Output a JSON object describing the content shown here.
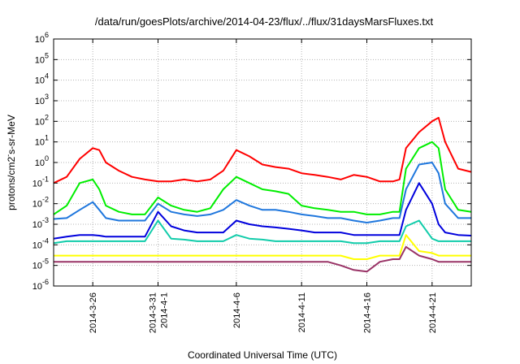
{
  "chart_data": {
    "type": "line",
    "title": "/data/run/goesPlots/archive/2014-04-23/flux/../flux/31daysMarsFluxes.txt",
    "xlabel": "Coordinated Universal Time (UTC)",
    "ylabel": "protons/cm2-s-sr-MeV",
    "y_scale": "log",
    "ylim": [
      1e-06,
      1000000.0
    ],
    "xlim": [
      "2014-03-23",
      "2014-04-24"
    ],
    "grid": true,
    "y_ticks": [
      {
        "value": 1e-06,
        "mantissa": "10",
        "exponent": "-6"
      },
      {
        "value": 1e-05,
        "mantissa": "10",
        "exponent": "-5"
      },
      {
        "value": 0.0001,
        "mantissa": "10",
        "exponent": "-4"
      },
      {
        "value": 0.001,
        "mantissa": "10",
        "exponent": "-3"
      },
      {
        "value": 0.01,
        "mantissa": "10",
        "exponent": "-2"
      },
      {
        "value": 0.1,
        "mantissa": "10",
        "exponent": "-1"
      },
      {
        "value": 1,
        "mantissa": "10",
        "exponent": "0"
      },
      {
        "value": 10,
        "mantissa": "10",
        "exponent": "1"
      },
      {
        "value": 100,
        "mantissa": "10",
        "exponent": "2"
      },
      {
        "value": 1000,
        "mantissa": "10",
        "exponent": "3"
      },
      {
        "value": 10000.0,
        "mantissa": "10",
        "exponent": "4"
      },
      {
        "value": 100000.0,
        "mantissa": "10",
        "exponent": "5"
      },
      {
        "value": 1000000.0,
        "mantissa": "10",
        "exponent": "6"
      }
    ],
    "x_ticks": [
      {
        "date": "2014-03-26",
        "lines": [
          "2014-3-26"
        ]
      },
      {
        "date": "2014-03-31",
        "lines": [
          "2014-3-31",
          "2014-4-1"
        ]
      },
      {
        "date": "2014-04-06",
        "lines": [
          "2014-4-6"
        ]
      },
      {
        "date": "2014-04-11",
        "lines": [
          "2014-4-11"
        ]
      },
      {
        "date": "2014-04-16",
        "lines": [
          "2014-4-16"
        ]
      },
      {
        "date": "2014-04-21",
        "lines": [
          "2014-4-21"
        ]
      }
    ],
    "series": [
      {
        "color": "#ff0000",
        "x": [
          "2014-03-23",
          "2014-03-24",
          "2014-03-25",
          "2014-03-26",
          "2014-03-26T12:00",
          "2014-03-27",
          "2014-03-28",
          "2014-03-29",
          "2014-03-30",
          "2014-03-31",
          "2014-04-01",
          "2014-04-02",
          "2014-04-03",
          "2014-04-04",
          "2014-04-05",
          "2014-04-06",
          "2014-04-07",
          "2014-04-08",
          "2014-04-09",
          "2014-04-10",
          "2014-04-11",
          "2014-04-12",
          "2014-04-13",
          "2014-04-14",
          "2014-04-15",
          "2014-04-16",
          "2014-04-17",
          "2014-04-18",
          "2014-04-18T12:00",
          "2014-04-19",
          "2014-04-20",
          "2014-04-21",
          "2014-04-21T12:00",
          "2014-04-22",
          "2014-04-23",
          "2014-04-24"
        ],
        "values": [
          0.1,
          0.2,
          1.5,
          5,
          4,
          1,
          0.4,
          0.2,
          0.15,
          0.12,
          0.12,
          0.15,
          0.12,
          0.15,
          0.4,
          4,
          2,
          0.8,
          0.6,
          0.5,
          0.3,
          0.25,
          0.2,
          0.15,
          0.25,
          0.2,
          0.12,
          0.12,
          0.15,
          5,
          30,
          100,
          150,
          10,
          0.5,
          0.35
        ]
      },
      {
        "color": "#00ee00",
        "x": [
          "2014-03-23",
          "2014-03-24",
          "2014-03-25",
          "2014-03-26",
          "2014-03-26T12:00",
          "2014-03-27",
          "2014-03-28",
          "2014-03-29",
          "2014-03-30",
          "2014-03-31",
          "2014-04-01",
          "2014-04-02",
          "2014-04-03",
          "2014-04-04",
          "2014-04-05",
          "2014-04-06",
          "2014-04-07",
          "2014-04-08",
          "2014-04-09",
          "2014-04-10",
          "2014-04-11",
          "2014-04-12",
          "2014-04-13",
          "2014-04-14",
          "2014-04-15",
          "2014-04-16",
          "2014-04-17",
          "2014-04-18",
          "2014-04-18T12:00",
          "2014-04-19",
          "2014-04-20",
          "2014-04-21",
          "2014-04-21T12:00",
          "2014-04-22",
          "2014-04-23",
          "2014-04-24"
        ],
        "values": [
          0.003,
          0.008,
          0.1,
          0.15,
          0.05,
          0.008,
          0.004,
          0.003,
          0.003,
          0.02,
          0.008,
          0.005,
          0.004,
          0.006,
          0.05,
          0.2,
          0.1,
          0.05,
          0.04,
          0.03,
          0.008,
          0.006,
          0.005,
          0.004,
          0.004,
          0.003,
          0.003,
          0.004,
          0.004,
          0.5,
          5,
          10,
          5,
          0.05,
          0.005,
          0.004
        ]
      },
      {
        "color": "#1f77dd",
        "x": [
          "2014-03-23",
          "2014-03-24",
          "2014-03-25",
          "2014-03-26",
          "2014-03-26T12:00",
          "2014-03-27",
          "2014-03-28",
          "2014-03-29",
          "2014-03-30",
          "2014-03-31",
          "2014-04-01",
          "2014-04-02",
          "2014-04-03",
          "2014-04-04",
          "2014-04-05",
          "2014-04-06",
          "2014-04-07",
          "2014-04-08",
          "2014-04-09",
          "2014-04-10",
          "2014-04-11",
          "2014-04-12",
          "2014-04-13",
          "2014-04-14",
          "2014-04-15",
          "2014-04-16",
          "2014-04-17",
          "2014-04-18",
          "2014-04-18T12:00",
          "2014-04-19",
          "2014-04-20",
          "2014-04-21",
          "2014-04-21T12:00",
          "2014-04-22",
          "2014-04-23",
          "2014-04-24"
        ],
        "values": [
          0.0018,
          0.002,
          0.005,
          0.012,
          0.005,
          0.002,
          0.0015,
          0.0015,
          0.0015,
          0.01,
          0.004,
          0.003,
          0.0025,
          0.003,
          0.005,
          0.015,
          0.008,
          0.005,
          0.005,
          0.004,
          0.003,
          0.0025,
          0.002,
          0.002,
          0.0015,
          0.0012,
          0.0015,
          0.002,
          0.002,
          0.05,
          0.8,
          1,
          0.3,
          0.01,
          0.002,
          0.002
        ]
      },
      {
        "color": "#0000dd",
        "x": [
          "2014-03-23",
          "2014-03-24",
          "2014-03-25",
          "2014-03-26",
          "2014-03-26T12:00",
          "2014-03-27",
          "2014-03-28",
          "2014-03-29",
          "2014-03-30",
          "2014-03-31",
          "2014-04-01",
          "2014-04-02",
          "2014-04-03",
          "2014-04-04",
          "2014-04-05",
          "2014-04-06",
          "2014-04-07",
          "2014-04-08",
          "2014-04-09",
          "2014-04-10",
          "2014-04-11",
          "2014-04-12",
          "2014-04-13",
          "2014-04-14",
          "2014-04-15",
          "2014-04-16",
          "2014-04-17",
          "2014-04-18",
          "2014-04-18T12:00",
          "2014-04-19",
          "2014-04-20",
          "2014-04-21",
          "2014-04-21T12:00",
          "2014-04-22",
          "2014-04-23",
          "2014-04-24"
        ],
        "values": [
          0.0002,
          0.00025,
          0.0003,
          0.0003,
          0.00028,
          0.00025,
          0.00025,
          0.00025,
          0.00025,
          0.004,
          0.0008,
          0.0005,
          0.0004,
          0.0004,
          0.0004,
          0.0015,
          0.001,
          0.0008,
          0.0007,
          0.0006,
          0.0005,
          0.0004,
          0.0004,
          0.0004,
          0.0003,
          0.0003,
          0.0003,
          0.0003,
          0.0003,
          0.005,
          0.1,
          0.01,
          0.001,
          0.0004,
          0.0003,
          0.00028
        ]
      },
      {
        "color": "#11ccaa",
        "x": [
          "2014-03-23",
          "2014-03-24",
          "2014-03-25",
          "2014-03-26",
          "2014-03-26T12:00",
          "2014-03-27",
          "2014-03-28",
          "2014-03-29",
          "2014-03-30",
          "2014-03-31",
          "2014-04-01",
          "2014-04-02",
          "2014-04-03",
          "2014-04-04",
          "2014-04-05",
          "2014-04-06",
          "2014-04-07",
          "2014-04-08",
          "2014-04-09",
          "2014-04-10",
          "2014-04-11",
          "2014-04-12",
          "2014-04-13",
          "2014-04-14",
          "2014-04-15",
          "2014-04-16",
          "2014-04-17",
          "2014-04-18",
          "2014-04-18T12:00",
          "2014-04-19",
          "2014-04-20",
          "2014-04-21",
          "2014-04-21T12:00",
          "2014-04-22",
          "2014-04-23",
          "2014-04-24"
        ],
        "values": [
          0.00012,
          0.00015,
          0.00015,
          0.00015,
          0.00015,
          0.00015,
          0.00015,
          0.00015,
          0.00015,
          0.0015,
          0.0002,
          0.00018,
          0.00015,
          0.00015,
          0.00015,
          0.0003,
          0.0002,
          0.00018,
          0.00015,
          0.00015,
          0.00015,
          0.00015,
          0.00015,
          0.00015,
          0.00012,
          0.00012,
          0.00015,
          0.00015,
          0.00015,
          0.0008,
          0.0015,
          0.0002,
          0.00015,
          0.00015,
          0.00015,
          0.00015
        ]
      },
      {
        "color": "#ffff00",
        "x": [
          "2014-03-23",
          "2014-03-24",
          "2014-03-25",
          "2014-03-26",
          "2014-03-26T12:00",
          "2014-03-27",
          "2014-03-28",
          "2014-03-29",
          "2014-03-30",
          "2014-03-31",
          "2014-04-01",
          "2014-04-02",
          "2014-04-03",
          "2014-04-04",
          "2014-04-05",
          "2014-04-06",
          "2014-04-07",
          "2014-04-08",
          "2014-04-09",
          "2014-04-10",
          "2014-04-11",
          "2014-04-12",
          "2014-04-13",
          "2014-04-14",
          "2014-04-15",
          "2014-04-16",
          "2014-04-17",
          "2014-04-18",
          "2014-04-18T12:00",
          "2014-04-19",
          "2014-04-20",
          "2014-04-21",
          "2014-04-21T12:00",
          "2014-04-22",
          "2014-04-23",
          "2014-04-24"
        ],
        "values": [
          3e-05,
          3e-05,
          3e-05,
          3e-05,
          3e-05,
          3e-05,
          3e-05,
          3e-05,
          3e-05,
          3e-05,
          3e-05,
          3e-05,
          3e-05,
          3e-05,
          3e-05,
          3e-05,
          3e-05,
          3e-05,
          3e-05,
          3e-05,
          3e-05,
          3e-05,
          3e-05,
          3e-05,
          2e-05,
          2e-05,
          3e-05,
          3e-05,
          3e-05,
          0.0003,
          5e-05,
          4e-05,
          3e-05,
          3e-05,
          3e-05,
          3e-05
        ]
      },
      {
        "color": "#993366",
        "x": [
          "2014-03-23",
          "2014-03-24",
          "2014-03-25",
          "2014-03-26",
          "2014-03-26T12:00",
          "2014-03-27",
          "2014-03-28",
          "2014-03-29",
          "2014-03-30",
          "2014-03-31",
          "2014-04-01",
          "2014-04-02",
          "2014-04-03",
          "2014-04-04",
          "2014-04-05",
          "2014-04-06",
          "2014-04-07",
          "2014-04-08",
          "2014-04-09",
          "2014-04-10",
          "2014-04-11",
          "2014-04-12",
          "2014-04-13",
          "2014-04-14",
          "2014-04-15",
          "2014-04-16",
          "2014-04-17",
          "2014-04-18",
          "2014-04-18T12:00",
          "2014-04-19",
          "2014-04-20",
          "2014-04-21",
          "2014-04-21T12:00",
          "2014-04-22",
          "2014-04-23",
          "2014-04-24"
        ],
        "values": [
          1.5e-05,
          1.5e-05,
          1.5e-05,
          1.5e-05,
          1.5e-05,
          1.5e-05,
          1.5e-05,
          1.5e-05,
          1.5e-05,
          1.5e-05,
          1.5e-05,
          1.5e-05,
          1.5e-05,
          1.5e-05,
          1.5e-05,
          1.5e-05,
          1.5e-05,
          1.5e-05,
          1.5e-05,
          1.5e-05,
          1.5e-05,
          1.5e-05,
          1.5e-05,
          1e-05,
          6e-06,
          5e-06,
          1.5e-05,
          2e-05,
          2e-05,
          8e-05,
          3e-05,
          2e-05,
          1.5e-05,
          1.5e-05,
          1.5e-05,
          1.5e-05
        ]
      }
    ]
  }
}
